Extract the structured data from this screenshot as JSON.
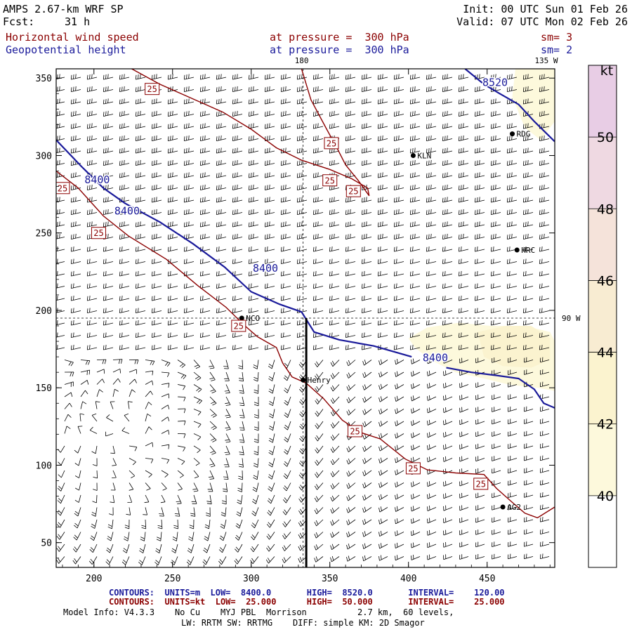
{
  "header": {
    "model": "AMPS 2.67-km WRF SP",
    "fcst_label": "Fcst:",
    "fcst_value": "31 h",
    "init": "Init: 00 UTC Sun 01 Feb 26",
    "valid": "Valid: 07 UTC Mon 02 Feb 26",
    "field1": "Horizontal wind speed",
    "field1_level": "at pressure =  300 hPa",
    "field1_sm": "sm= 3",
    "field2": "Geopotential height",
    "field2_level": "at pressure =  300 hPa",
    "field2_sm": "sm= 2"
  },
  "colors": {
    "height_contour": "#1a1a9a",
    "speed_contour": "#8b0000",
    "barb": "#000000"
  },
  "chart_data": {
    "type": "contour-map",
    "x_ticks": [
      200,
      250,
      300,
      350,
      400,
      450
    ],
    "y_ticks": [
      50,
      100,
      150,
      200,
      250,
      300,
      350
    ],
    "xlim": [
      176,
      493
    ],
    "ylim": [
      34,
      356
    ],
    "colorbar": {
      "unit": "kt",
      "labels": [
        40,
        42,
        44,
        46,
        48,
        50
      ],
      "bands": [
        {
          "from": 40,
          "to": 42,
          "color": "#fdf9dc"
        },
        {
          "from": 42,
          "to": 44,
          "color": "#fbf3cf"
        },
        {
          "from": 44,
          "to": 46,
          "color": "#f8ecd2"
        },
        {
          "from": 46,
          "to": 48,
          "color": "#f5e3da"
        },
        {
          "from": 48,
          "to": 50,
          "color": "#efd9e2"
        },
        {
          "from": 50,
          "to": 52,
          "color": "#e8cde5"
        }
      ]
    },
    "grid_line_labels": {
      "top": "180",
      "top_right": "135 W",
      "right": "90 W"
    },
    "meridian_180_x": 333,
    "latitude_line_y": 195,
    "cross_section_x": 335,
    "cross_section_y": [
      34,
      195
    ],
    "height_contours": [
      {
        "value": 8400,
        "points": [
          [
            176,
            310
          ],
          [
            192,
            293
          ],
          [
            206,
            279
          ],
          [
            220,
            269
          ],
          [
            242,
            257
          ],
          [
            263,
            243
          ],
          [
            283,
            228
          ],
          [
            300,
            212
          ],
          [
            318,
            204
          ],
          [
            332,
            199
          ],
          [
            340,
            186
          ],
          [
            356,
            181
          ],
          [
            378,
            177
          ],
          [
            402,
            170
          ]
        ]
      },
      {
        "value": 8400,
        "points": [
          [
            424,
            163
          ],
          [
            440,
            160
          ],
          [
            456,
            158
          ],
          [
            470,
            156
          ],
          [
            480,
            149
          ],
          [
            486,
            140
          ],
          [
            493,
            137
          ]
        ]
      },
      {
        "value": 8520,
        "points": [
          [
            436,
            356
          ],
          [
            448,
            346
          ],
          [
            458,
            340
          ],
          [
            470,
            333
          ],
          [
            480,
            322
          ],
          [
            493,
            309
          ]
        ]
      }
    ],
    "height_labels": [
      {
        "text": "8400",
        "x": 194,
        "y": 282
      },
      {
        "text": "8400",
        "x": 213,
        "y": 262
      },
      {
        "text": "8400",
        "x": 301,
        "y": 225
      },
      {
        "text": "8400",
        "x": 409,
        "y": 167
      },
      {
        "text": "8520",
        "x": 447,
        "y": 345
      }
    ],
    "speed_contours": [
      {
        "value": 25,
        "points": [
          [
            176,
            290
          ],
          [
            190,
            279
          ],
          [
            206,
            261
          ],
          [
            222,
            248
          ],
          [
            246,
            233
          ],
          [
            266,
            216
          ],
          [
            284,
            202
          ],
          [
            296,
            190
          ],
          [
            304,
            183
          ],
          [
            316,
            176
          ],
          [
            320,
            166
          ],
          [
            326,
            157
          ],
          [
            335,
            153
          ],
          [
            346,
            143
          ],
          [
            358,
            129
          ],
          [
            370,
            121
          ],
          [
            382,
            117
          ],
          [
            398,
            104
          ],
          [
            412,
            97
          ],
          [
            430,
            95
          ],
          [
            448,
            94
          ],
          [
            456,
            85
          ],
          [
            466,
            76
          ],
          [
            474,
            69
          ],
          [
            482,
            66
          ],
          [
            493,
            73
          ]
        ]
      },
      {
        "value": 25,
        "points": [
          [
            224,
            356
          ],
          [
            242,
            346
          ],
          [
            262,
            337
          ],
          [
            282,
            328
          ],
          [
            300,
            317
          ],
          [
            316,
            305
          ],
          [
            332,
            297
          ],
          [
            350,
            291
          ],
          [
            364,
            285
          ],
          [
            374,
            279
          ],
          [
            375,
            274
          ],
          [
            368,
            284
          ],
          [
            360,
            294
          ],
          [
            355,
            304
          ],
          [
            348,
            317
          ],
          [
            338,
            336
          ],
          [
            332,
            356
          ]
        ]
      }
    ],
    "speed_labels": [
      {
        "text": "25",
        "x": 237,
        "y": 343
      },
      {
        "text": "25",
        "x": 180,
        "y": 279
      },
      {
        "text": "25",
        "x": 203,
        "y": 250
      },
      {
        "text": "25",
        "x": 351,
        "y": 308
      },
      {
        "text": "25",
        "x": 350,
        "y": 284
      },
      {
        "text": "25",
        "x": 365,
        "y": 277
      },
      {
        "text": "25",
        "x": 292,
        "y": 190
      },
      {
        "text": "25",
        "x": 366,
        "y": 122
      },
      {
        "text": "25",
        "x": 403,
        "y": 98
      },
      {
        "text": "25",
        "x": 446,
        "y": 88
      }
    ],
    "stations": [
      {
        "id": "RDG",
        "x": 466,
        "y": 314
      },
      {
        "id": "KLN",
        "x": 403,
        "y": 300
      },
      {
        "id": "HRC",
        "x": 469,
        "y": 239
      },
      {
        "id": "NCO",
        "x": 294,
        "y": 195
      },
      {
        "id": "Henry",
        "x": 333,
        "y": 155
      },
      {
        "id": "AG2",
        "x": 460,
        "y": 73
      }
    ],
    "shaded_areas": [
      {
        "band": "40-42",
        "points": [
          [
            400,
            182
          ],
          [
            412,
            189
          ],
          [
            432,
            192
          ],
          [
            452,
            190
          ],
          [
            474,
            190
          ],
          [
            490,
            186
          ],
          [
            493,
            180
          ],
          [
            493,
            148
          ],
          [
            482,
            150
          ],
          [
            464,
            152
          ],
          [
            448,
            156
          ],
          [
            430,
            160
          ],
          [
            414,
            168
          ],
          [
            404,
            176
          ]
        ]
      },
      {
        "band": "42-44",
        "points": [
          [
            444,
            186
          ],
          [
            462,
            190
          ],
          [
            478,
            190
          ],
          [
            490,
            182
          ],
          [
            490,
            168
          ],
          [
            478,
            163
          ],
          [
            460,
            164
          ],
          [
            448,
            170
          ]
        ]
      },
      {
        "band": "40-42",
        "points": [
          [
            468,
            356
          ],
          [
            493,
            356
          ],
          [
            493,
            322
          ],
          [
            484,
            310
          ],
          [
            474,
            318
          ],
          [
            466,
            338
          ]
        ]
      }
    ]
  },
  "footer": {
    "blue_line": "CONTOURS:  UNITS=m  LOW=  8400.0       HIGH=  8520.0       INTERVAL=    120.00",
    "red_line": "CONTOURS:  UNITS=kt  LOW=  25.000      HIGH=  50.000       INTERVAL=    25.000",
    "model_info_1": "Model Info: V4.3.3    No Cu    MYJ PBL  Morrison          2.7 km,  60 levels,",
    "model_info_2": "LW: RRTM SW: RRTMG    DIFF: simple KM: 2D Smagor"
  }
}
